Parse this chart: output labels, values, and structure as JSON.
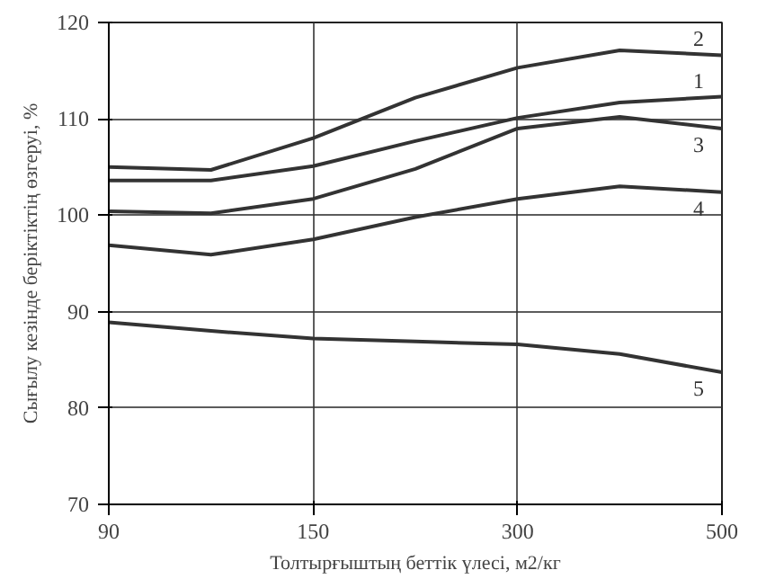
{
  "chart_data": {
    "type": "line",
    "xlabel": "Толтырғыштың беттік үлесі, м2/кг",
    "ylabel": "Сығылу кезінде беріктіктің өзгеруі, %",
    "categories": [
      "90",
      null,
      "150",
      null,
      "300",
      null,
      "500"
    ],
    "ylim": [
      70,
      120
    ],
    "yticks": [
      70,
      80,
      90,
      100,
      110,
      120
    ],
    "grid": true,
    "marker": "none",
    "line_style": "solid",
    "series": [
      {
        "name": "2",
        "color": "#333333",
        "values": [
          105.0,
          104.7,
          108.0,
          112.2,
          115.3,
          117.1,
          116.6
        ]
      },
      {
        "name": "1",
        "color": "#333333",
        "values": [
          103.6,
          103.6,
          105.1,
          107.7,
          110.1,
          111.7,
          112.3
        ]
      },
      {
        "name": "3",
        "color": "#333333",
        "values": [
          100.4,
          100.2,
          101.7,
          104.8,
          109.0,
          110.2,
          109.0
        ]
      },
      {
        "name": "4",
        "color": "#333333",
        "values": [
          96.9,
          95.9,
          97.5,
          99.8,
          101.7,
          103.0,
          102.4
        ]
      },
      {
        "name": "5",
        "color": "#333333",
        "values": [
          88.9,
          88.0,
          87.2,
          86.9,
          86.6,
          85.6,
          83.7
        ]
      }
    ]
  }
}
